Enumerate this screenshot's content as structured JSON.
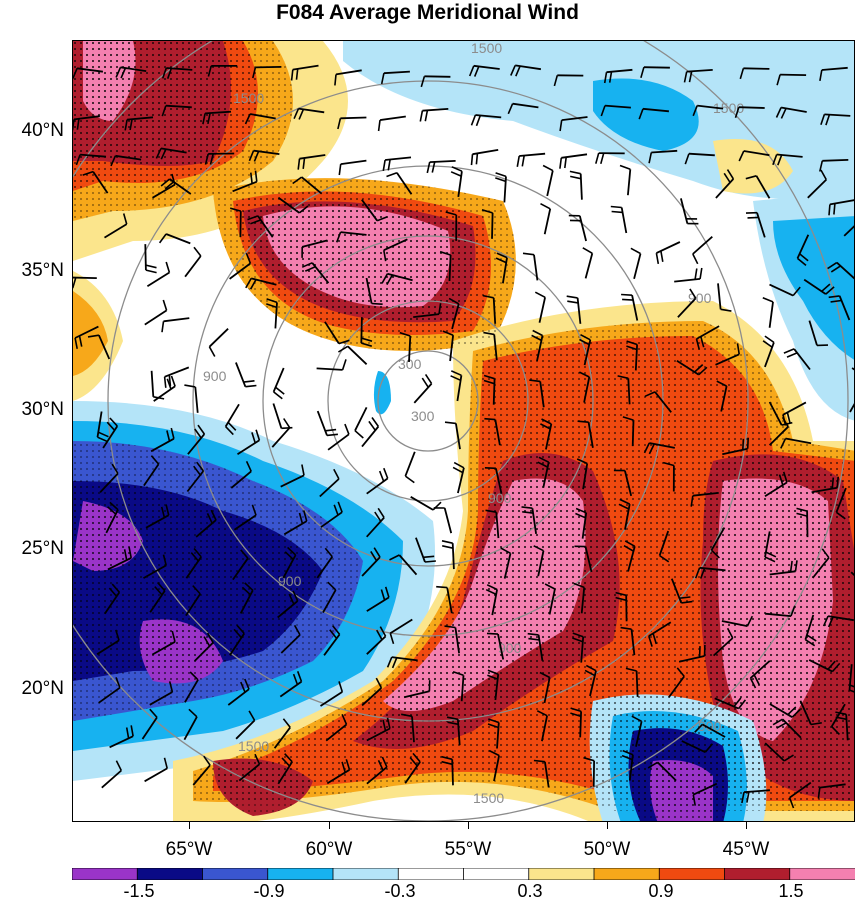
{
  "title": "F084 Average Meridional Wind",
  "lat_labels": [
    "40°N",
    "35°N",
    "30°N",
    "25°N",
    "20°N"
  ],
  "lon_labels": [
    "65°W",
    "60°W",
    "55°W",
    "50°W",
    "45°W"
  ],
  "contour_labels": [
    "1500",
    "1500",
    "1500",
    "900",
    "900",
    "300",
    "900",
    "900",
    "900",
    "300",
    "1500",
    "1500",
    "900"
  ],
  "colorbar": {
    "colors": [
      "#9a34c8",
      "#0a0a86",
      "#3a56d0",
      "#17b2f0",
      "#b4e4f8",
      "#ffffff",
      "#ffffff",
      "#fbe58c",
      "#f7a81a",
      "#f04a10",
      "#b01e2e",
      "#f480b0"
    ],
    "labels": [
      "-1.5",
      "-0.9",
      "-0.3",
      "0.3",
      "0.9",
      "1.5"
    ]
  },
  "fill_colors": {
    "deep_purple": "#9a34c8",
    "navy": "#0a0a86",
    "blue": "#3a56d0",
    "cyan": "#17b2f0",
    "light_blue": "#b4e4f8",
    "yellow": "#fbe58c",
    "orange": "#f7a81a",
    "red_orange": "#f04a10",
    "dark_red": "#b01e2e",
    "pink": "#f480b0"
  }
}
